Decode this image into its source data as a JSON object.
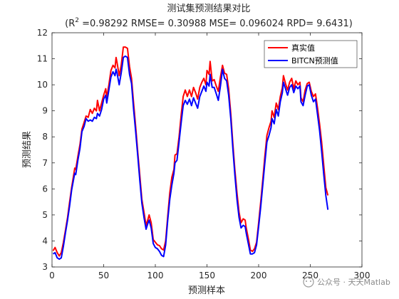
{
  "chart_data": {
    "type": "line",
    "title": "测试集预测结果对比",
    "subtitle_prefix": "(R",
    "subtitle_sup": "2",
    "subtitle_rest": " =0.98292 RMSE= 0.30988 MSE= 0.096024 RPD= 9.6431)",
    "xlabel": "预测样本",
    "ylabel": "预测结果",
    "xlim": [
      0,
      300
    ],
    "ylim": [
      3,
      12
    ],
    "xticks": [
      "0",
      "50",
      "100",
      "150",
      "200",
      "250",
      "300"
    ],
    "yticks": [
      "3",
      "4",
      "5",
      "6",
      "7",
      "8",
      "9",
      "10",
      "11",
      "12"
    ],
    "grid": false,
    "legend_position": "top-right",
    "series": [
      {
        "name": "真实值",
        "color": "#ff0000",
        "points": [
          [
            1,
            3.62
          ],
          [
            3,
            3.75
          ],
          [
            5,
            3.55
          ],
          [
            7,
            3.42
          ],
          [
            9,
            3.55
          ],
          [
            11,
            3.95
          ],
          [
            13,
            4.4
          ],
          [
            15,
            4.9
          ],
          [
            17,
            5.5
          ],
          [
            19,
            6.05
          ],
          [
            21,
            6.55
          ],
          [
            22,
            6.8
          ],
          [
            23,
            6.75
          ],
          [
            25,
            7.25
          ],
          [
            27,
            7.7
          ],
          [
            29,
            8.3
          ],
          [
            31,
            8.55
          ],
          [
            33,
            8.8
          ],
          [
            35,
            8.75
          ],
          [
            37,
            9.05
          ],
          [
            39,
            8.9
          ],
          [
            41,
            9.1
          ],
          [
            43,
            9.0
          ],
          [
            44,
            9.4
          ],
          [
            46,
            9.0
          ],
          [
            48,
            9.3
          ],
          [
            50,
            9.6
          ],
          [
            52,
            9.85
          ],
          [
            53,
            9.5
          ],
          [
            55,
            10.0
          ],
          [
            57,
            10.55
          ],
          [
            59,
            10.75
          ],
          [
            61,
            10.65
          ],
          [
            62,
            11.05
          ],
          [
            63,
            10.85
          ],
          [
            65,
            10.35
          ],
          [
            67,
            10.75
          ],
          [
            69,
            11.45
          ],
          [
            71,
            11.45
          ],
          [
            73,
            11.4
          ],
          [
            75,
            10.7
          ],
          [
            77,
            10.25
          ],
          [
            79,
            9.3
          ],
          [
            81,
            8.4
          ],
          [
            83,
            7.4
          ],
          [
            85,
            6.5
          ],
          [
            87,
            5.6
          ],
          [
            89,
            5.1
          ],
          [
            91,
            4.6
          ],
          [
            93,
            4.85
          ],
          [
            94,
            5.0
          ],
          [
            96,
            4.7
          ],
          [
            98,
            4.05
          ],
          [
            100,
            3.95
          ],
          [
            102,
            3.85
          ],
          [
            104,
            3.82
          ],
          [
            106,
            3.7
          ],
          [
            108,
            3.65
          ],
          [
            110,
            4.0
          ],
          [
            112,
            4.95
          ],
          [
            114,
            5.85
          ],
          [
            116,
            6.45
          ],
          [
            118,
            6.75
          ],
          [
            119,
            7.3
          ],
          [
            121,
            7.35
          ],
          [
            123,
            8.0
          ],
          [
            125,
            8.85
          ],
          [
            127,
            9.55
          ],
          [
            129,
            9.8
          ],
          [
            131,
            9.55
          ],
          [
            133,
            9.8
          ],
          [
            135,
            9.55
          ],
          [
            137,
            9.9
          ],
          [
            139,
            9.7
          ],
          [
            141,
            9.45
          ],
          [
            143,
            9.9
          ],
          [
            145,
            10.1
          ],
          [
            147,
            10.25
          ],
          [
            149,
            10.0
          ],
          [
            150,
            10.55
          ],
          [
            152,
            10.4
          ],
          [
            153,
            10.9
          ],
          [
            155,
            10.15
          ],
          [
            157,
            10.2
          ],
          [
            159,
            9.95
          ],
          [
            161,
            9.75
          ],
          [
            163,
            10.3
          ],
          [
            165,
            10.75
          ],
          [
            167,
            10.45
          ],
          [
            169,
            10.4
          ],
          [
            171,
            9.85
          ],
          [
            173,
            8.9
          ],
          [
            175,
            7.75
          ],
          [
            177,
            6.75
          ],
          [
            179,
            5.85
          ],
          [
            181,
            5.1
          ],
          [
            183,
            4.7
          ],
          [
            185,
            4.85
          ],
          [
            187,
            4.8
          ],
          [
            188,
            4.5
          ],
          [
            190,
            4.1
          ],
          [
            192,
            3.65
          ],
          [
            194,
            3.6
          ],
          [
            196,
            3.7
          ],
          [
            198,
            3.95
          ],
          [
            200,
            4.7
          ],
          [
            202,
            5.5
          ],
          [
            204,
            6.35
          ],
          [
            206,
            7.25
          ],
          [
            208,
            8.05
          ],
          [
            210,
            8.35
          ],
          [
            212,
            8.6
          ],
          [
            213,
            9.0
          ],
          [
            215,
            8.75
          ],
          [
            217,
            9.3
          ],
          [
            219,
            9.05
          ],
          [
            221,
            9.55
          ],
          [
            223,
            9.9
          ],
          [
            224,
            10.35
          ],
          [
            226,
            10.05
          ],
          [
            228,
            9.8
          ],
          [
            230,
            10.1
          ],
          [
            232,
            10.25
          ],
          [
            234,
            9.85
          ],
          [
            236,
            10.15
          ],
          [
            238,
            10.0
          ],
          [
            240,
            10.1
          ],
          [
            241,
            9.5
          ],
          [
            243,
            9.35
          ],
          [
            245,
            9.8
          ],
          [
            247,
            10.05
          ],
          [
            249,
            10.1
          ],
          [
            251,
            9.75
          ],
          [
            253,
            9.55
          ],
          [
            255,
            9.65
          ],
          [
            257,
            9.1
          ],
          [
            259,
            8.5
          ],
          [
            261,
            7.8
          ],
          [
            263,
            6.9
          ],
          [
            265,
            6.05
          ],
          [
            267,
            5.75
          ]
        ]
      },
      {
        "name": "BITCN预测值",
        "color": "#0000ff",
        "points": [
          [
            1,
            3.5
          ],
          [
            3,
            3.55
          ],
          [
            5,
            3.35
          ],
          [
            7,
            3.3
          ],
          [
            9,
            3.35
          ],
          [
            11,
            3.8
          ],
          [
            13,
            4.3
          ],
          [
            15,
            4.8
          ],
          [
            17,
            5.35
          ],
          [
            19,
            5.95
          ],
          [
            21,
            6.4
          ],
          [
            22,
            6.6
          ],
          [
            23,
            6.55
          ],
          [
            25,
            7.1
          ],
          [
            27,
            7.55
          ],
          [
            29,
            8.2
          ],
          [
            31,
            8.4
          ],
          [
            33,
            8.7
          ],
          [
            35,
            8.6
          ],
          [
            37,
            8.65
          ],
          [
            39,
            8.6
          ],
          [
            41,
            8.75
          ],
          [
            43,
            8.7
          ],
          [
            44,
            8.9
          ],
          [
            46,
            8.8
          ],
          [
            48,
            9.05
          ],
          [
            50,
            9.45
          ],
          [
            52,
            9.6
          ],
          [
            53,
            9.3
          ],
          [
            55,
            9.8
          ],
          [
            57,
            10.3
          ],
          [
            59,
            10.5
          ],
          [
            61,
            10.35
          ],
          [
            62,
            10.6
          ],
          [
            63,
            10.45
          ],
          [
            65,
            10.0
          ],
          [
            67,
            10.45
          ],
          [
            69,
            11.05
          ],
          [
            71,
            11.1
          ],
          [
            73,
            11.05
          ],
          [
            75,
            10.4
          ],
          [
            77,
            10.05
          ],
          [
            79,
            9.05
          ],
          [
            81,
            8.2
          ],
          [
            83,
            7.25
          ],
          [
            85,
            6.3
          ],
          [
            87,
            5.45
          ],
          [
            89,
            4.9
          ],
          [
            91,
            4.45
          ],
          [
            93,
            4.7
          ],
          [
            94,
            4.8
          ],
          [
            96,
            4.5
          ],
          [
            98,
            3.9
          ],
          [
            100,
            3.75
          ],
          [
            102,
            3.7
          ],
          [
            104,
            3.6
          ],
          [
            106,
            3.45
          ],
          [
            108,
            3.4
          ],
          [
            110,
            3.85
          ],
          [
            112,
            4.8
          ],
          [
            114,
            5.6
          ],
          [
            116,
            6.15
          ],
          [
            118,
            6.6
          ],
          [
            119,
            7.0
          ],
          [
            121,
            7.1
          ],
          [
            123,
            7.8
          ],
          [
            125,
            8.55
          ],
          [
            127,
            9.2
          ],
          [
            129,
            9.4
          ],
          [
            131,
            9.25
          ],
          [
            133,
            9.45
          ],
          [
            135,
            9.2
          ],
          [
            137,
            9.5
          ],
          [
            139,
            9.3
          ],
          [
            141,
            9.1
          ],
          [
            143,
            9.55
          ],
          [
            145,
            9.75
          ],
          [
            147,
            9.95
          ],
          [
            149,
            9.75
          ],
          [
            150,
            10.1
          ],
          [
            152,
            9.95
          ],
          [
            153,
            10.4
          ],
          [
            155,
            9.9
          ],
          [
            157,
            9.9
          ],
          [
            159,
            9.65
          ],
          [
            161,
            9.4
          ],
          [
            163,
            9.95
          ],
          [
            165,
            10.6
          ],
          [
            167,
            10.25
          ],
          [
            169,
            10.15
          ],
          [
            171,
            9.6
          ],
          [
            173,
            8.7
          ],
          [
            175,
            7.55
          ],
          [
            177,
            6.55
          ],
          [
            179,
            5.6
          ],
          [
            181,
            4.9
          ],
          [
            183,
            4.5
          ],
          [
            185,
            4.6
          ],
          [
            187,
            4.55
          ],
          [
            188,
            4.3
          ],
          [
            190,
            3.9
          ],
          [
            192,
            3.5
          ],
          [
            194,
            3.5
          ],
          [
            196,
            3.55
          ],
          [
            198,
            3.85
          ],
          [
            200,
            4.55
          ],
          [
            202,
            5.3
          ],
          [
            204,
            6.15
          ],
          [
            206,
            7.0
          ],
          [
            208,
            7.8
          ],
          [
            210,
            8.05
          ],
          [
            212,
            8.35
          ],
          [
            213,
            8.7
          ],
          [
            215,
            8.5
          ],
          [
            217,
            9.05
          ],
          [
            219,
            8.8
          ],
          [
            221,
            9.35
          ],
          [
            223,
            9.7
          ],
          [
            224,
            10.1
          ],
          [
            226,
            9.85
          ],
          [
            228,
            9.6
          ],
          [
            230,
            9.9
          ],
          [
            232,
            10.0
          ],
          [
            234,
            9.7
          ],
          [
            236,
            9.95
          ],
          [
            238,
            9.85
          ],
          [
            240,
            9.95
          ],
          [
            241,
            9.35
          ],
          [
            243,
            9.2
          ],
          [
            245,
            9.6
          ],
          [
            247,
            9.95
          ],
          [
            249,
            10.0
          ],
          [
            251,
            9.6
          ],
          [
            253,
            9.35
          ],
          [
            255,
            9.45
          ],
          [
            257,
            8.85
          ],
          [
            259,
            8.25
          ],
          [
            261,
            7.45
          ],
          [
            263,
            6.55
          ],
          [
            265,
            5.75
          ],
          [
            267,
            5.2
          ]
        ]
      }
    ]
  },
  "watermark": {
    "text": "公众号 · 天天Matlab"
  }
}
